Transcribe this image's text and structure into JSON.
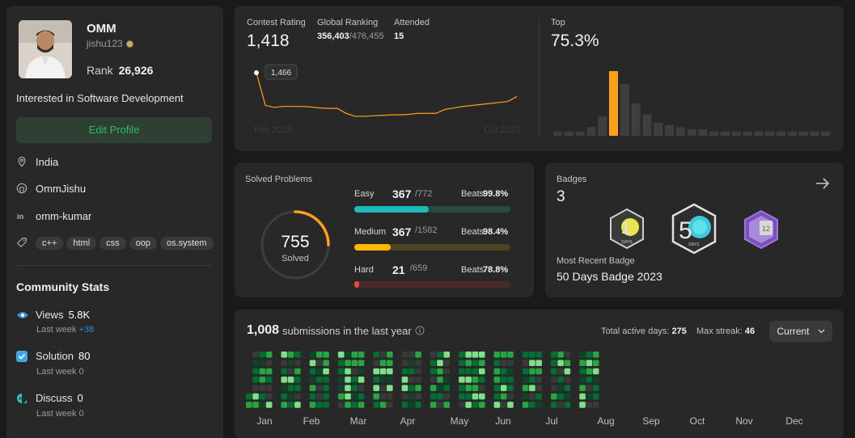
{
  "profile": {
    "name": "OMM",
    "username": "jishu123",
    "rank_label": "Rank",
    "rank": "26,926",
    "bio": "Interested in Software Development",
    "edit_label": "Edit Profile",
    "location": "India",
    "github": "OmmJishu",
    "linkedin": "omm-kumar",
    "skills": [
      "c++",
      "html",
      "css",
      "oop",
      "os.system"
    ]
  },
  "community": {
    "title": "Community Stats",
    "views": {
      "label": "Views",
      "value": "5.8K",
      "sub": "Last week",
      "delta": "+38"
    },
    "solution": {
      "label": "Solution",
      "value": "80",
      "sub": "Last week",
      "delta": "0"
    },
    "discuss": {
      "label": "Discuss",
      "value": "0",
      "sub": "Last week",
      "delta": "0"
    }
  },
  "contest": {
    "rating_label": "Contest Rating",
    "rating": "1,418",
    "global_label": "Global Ranking",
    "global_rank": "356,403",
    "global_total": "/476,455",
    "attended_label": "Attended",
    "attended": "15",
    "tooltip": "1,466",
    "x_start": "Feb 2023",
    "x_end": "Oct 2023",
    "top_label": "Top",
    "top_value": "75.3%",
    "rating_series": [
      1466,
      1400,
      1396,
      1398,
      1398,
      1398,
      1397,
      1395,
      1394,
      1394,
      1384,
      1378,
      1378,
      1379,
      1380,
      1381,
      1381,
      1382,
      1384,
      1384,
      1384,
      1392,
      1395,
      1398,
      1400,
      1402,
      1404,
      1406,
      1408,
      1418
    ],
    "histogram": [
      2,
      2,
      2,
      4,
      9,
      30,
      24,
      15,
      10,
      6,
      5,
      4,
      3,
      3,
      2,
      2,
      2,
      2,
      2,
      2,
      2,
      2,
      2,
      2,
      2
    ],
    "histogram_highlight_index": 5,
    "colors": {
      "line": "#ffa116",
      "bar": "#3e3e3e",
      "bar_active": "#ffa116"
    }
  },
  "solved": {
    "title": "Solved Problems",
    "total": "755",
    "total_label": "Solved",
    "ring_fraction": 0.25,
    "rows": [
      {
        "label": "Easy",
        "solved": "367",
        "total": "/772",
        "beats_label": "Beats",
        "beats": "99.8%",
        "fraction": 0.475,
        "color": "#1cbaba",
        "track": "#2a4a40"
      },
      {
        "label": "Medium",
        "solved": "367",
        "total": "/1582",
        "beats_label": "Beats",
        "beats": "98.4%",
        "fraction": 0.232,
        "color": "#ffb800",
        "track": "#4a4420"
      },
      {
        "label": "Hard",
        "solved": "21",
        "total": "/659",
        "beats_label": "Beats",
        "beats": "78.8%",
        "fraction": 0.032,
        "color": "#ef4743",
        "track": "#4a2a2a"
      }
    ]
  },
  "badges": {
    "title": "Badges",
    "count": "3",
    "recent_label": "Most Recent Badge",
    "recent": "50 Days Badge 2023",
    "badge_names": [
      "100-days-badge",
      "50-days-badge",
      "12-month-badge"
    ]
  },
  "submissions": {
    "count": "1,008",
    "label": "submissions in the last year",
    "active_label": "Total active days:",
    "active_value": "275",
    "streak_label": "Max streak:",
    "streak_value": "46",
    "dropdown": "Current",
    "months": [
      "Jan",
      "Feb",
      "Mar",
      "Apr",
      "May",
      "Jun",
      "Jul",
      "Aug",
      "Sep",
      "Oct",
      "Nov",
      "Dec"
    ]
  }
}
